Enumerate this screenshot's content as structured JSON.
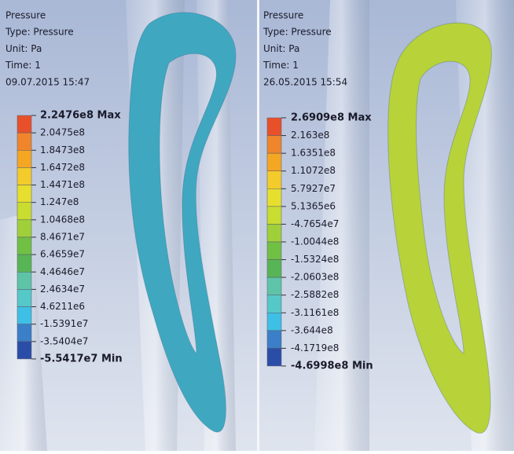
{
  "panels": [
    {
      "header": [
        "Pressure",
        "Type: Pressure",
        "Unit: Pa",
        "Time: 1",
        "09.07.2015 15:47"
      ],
      "legend_labels": [
        "2.2476e8 Max",
        "2.0475e8",
        "1.8473e8",
        "1.6472e8",
        "1.4471e8",
        "1.247e8",
        "1.0468e8",
        "8.4671e7",
        "6.4659e7",
        "4.4646e7",
        "2.4634e7",
        "4.6211e6",
        "-1.5391e7",
        "-3.5404e7",
        "-5.5417e7 Min"
      ],
      "legend_colors": [
        "#e8502a",
        "#f0852b",
        "#f5a623",
        "#f3cb2a",
        "#e6df2e",
        "#c9dc30",
        "#9fd03a",
        "#70c044",
        "#58b555",
        "#5ec4a8",
        "#55c8c8",
        "#3ec0e6",
        "#3a7fc8",
        "#2a4ea8"
      ],
      "blade_color": "#3fa8c0"
    },
    {
      "header": [
        "Pressure",
        "Type: Pressure",
        "Unit: Pa",
        "Time: 1",
        "26.05.2015 15:54"
      ],
      "legend_labels": [
        "2.6909e8 Max",
        "2.163e8",
        "1.6351e8",
        "1.1072e8",
        "5.7927e7",
        "5.1365e6",
        "-4.7654e7",
        "-1.0044e8",
        "-1.5324e8",
        "-2.0603e8",
        "-2.5882e8",
        "-3.1161e8",
        "-3.644e8",
        "-4.1719e8",
        "-4.6998e8 Min"
      ],
      "legend_colors": [
        "#e8502a",
        "#f0852b",
        "#f5a623",
        "#f3cb2a",
        "#e6df2e",
        "#c9dc30",
        "#9fd03a",
        "#70c044",
        "#58b555",
        "#5ec4a8",
        "#55c8c8",
        "#3ec0e6",
        "#3a7fc8",
        "#2a4ea8"
      ],
      "blade_color": "#b8d23a"
    }
  ]
}
